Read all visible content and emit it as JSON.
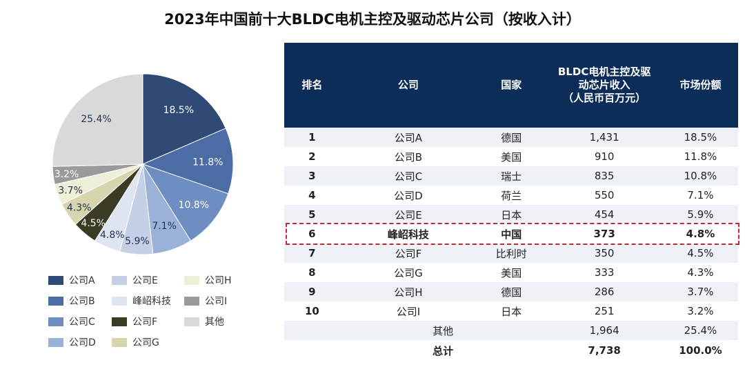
{
  "title": "2023年中国前十大BLDC电机主控及驱动芯片公司（按收入计）",
  "chart_data": {
    "type": "pie",
    "title": "",
    "start": "top",
    "direction": "clockwise",
    "categories": [
      "公司A",
      "公司B",
      "公司C",
      "公司D",
      "公司E",
      "峰岹科技",
      "公司F",
      "公司G",
      "公司H",
      "公司I",
      "其他"
    ],
    "values": [
      18.5,
      11.8,
      10.8,
      7.1,
      5.9,
      4.8,
      4.5,
      4.3,
      3.7,
      3.2,
      25.4
    ],
    "labels": [
      "18.5%",
      "11.8%",
      "10.8%",
      "7.1%",
      "5.9%",
      "4.8%",
      "4.5%",
      "4.3%",
      "3.7%",
      "3.2%",
      "25.4%"
    ],
    "colors": [
      "#2f4b75",
      "#4c6ca6",
      "#6e8ec2",
      "#9cb1d7",
      "#c5d0e7",
      "#dfe5f0",
      "#3b3b24",
      "#d7d5ae",
      "#efeed8",
      "#9a9a9a",
      "#d9d9d9"
    ],
    "label_colors": [
      "#fff",
      "#fff",
      "#fff",
      "#1d3350",
      "#1d3350",
      "#1d3350",
      "#fff",
      "#1d3350",
      "#1d3350",
      "#fff",
      "#1d3350"
    ],
    "legend_position": "bottom-left"
  },
  "table": {
    "headers": [
      "排名",
      "公司",
      "国家",
      "BLDC电机主控及驱\n动芯片收入\n（人民币百万元）",
      "市场份额"
    ],
    "rows": [
      [
        "1",
        "公司A",
        "德国",
        "1,431",
        "18.5%"
      ],
      [
        "2",
        "公司B",
        "美国",
        "910",
        "11.8%"
      ],
      [
        "3",
        "公司C",
        "瑞士",
        "835",
        "10.8%"
      ],
      [
        "4",
        "公司D",
        "荷兰",
        "550",
        "7.1%"
      ],
      [
        "5",
        "公司E",
        "日本",
        "454",
        "5.9%"
      ],
      [
        "6",
        "峰岹科技",
        "中国",
        "373",
        "4.8%"
      ],
      [
        "7",
        "公司F",
        "比利时",
        "350",
        "4.5%"
      ],
      [
        "8",
        "公司G",
        "美国",
        "333",
        "4.3%"
      ],
      [
        "9",
        "公司H",
        "德国",
        "286",
        "3.7%"
      ],
      [
        "10",
        "公司I",
        "日本",
        "251",
        "3.2%"
      ]
    ],
    "other": {
      "label": "其他",
      "revenue": "1,964",
      "share": "25.4%"
    },
    "total": {
      "label": "总计",
      "revenue": "7,738",
      "share": "100.0%"
    },
    "highlight_color": "#c0283a"
  }
}
